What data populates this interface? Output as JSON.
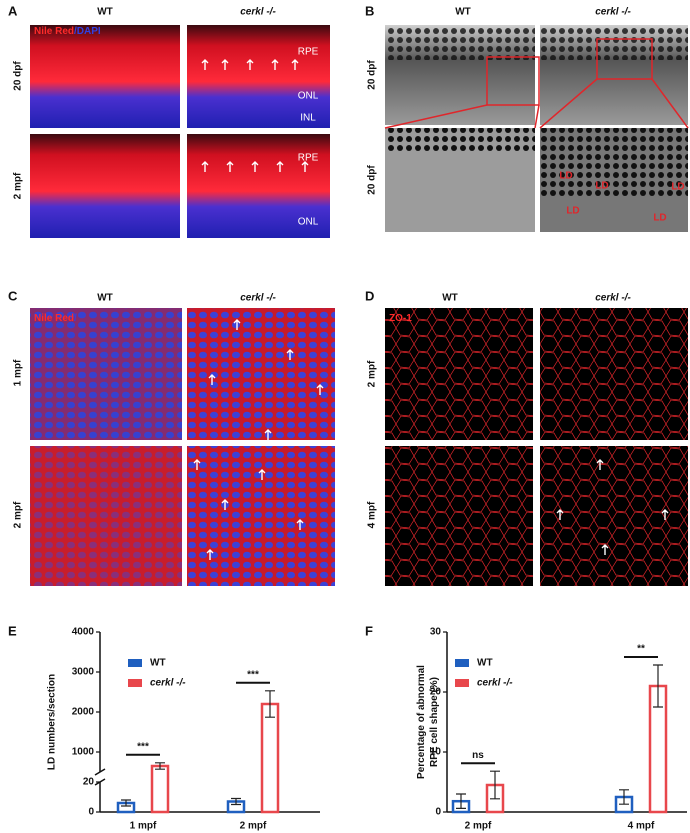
{
  "panels": {
    "A": {
      "label": "A",
      "columns": [
        "WT",
        "cerkl -/-"
      ],
      "rows": [
        "20 dpf",
        "2 mpf"
      ],
      "stain": [
        "Nile Red",
        "/DAPI"
      ],
      "layers_top": [
        "RPE",
        "ONL",
        "INL"
      ],
      "layers_bottom": [
        "RPE",
        "ONL"
      ]
    },
    "B": {
      "label": "B",
      "columns": [
        "WT",
        "cerkl -/-"
      ],
      "rows": [
        "20 dpf",
        "20 dpf"
      ],
      "ld": [
        "LD",
        "LD",
        "LD",
        "LD",
        "LD"
      ]
    },
    "C": {
      "label": "C",
      "columns": [
        "WT",
        "cerkl -/-"
      ],
      "rows": [
        "1 mpf",
        "2 mpf"
      ],
      "stain": [
        "Nile Red",
        "/"
      ]
    },
    "D": {
      "label": "D",
      "columns": [
        "WT",
        "cerkl -/-"
      ],
      "rows": [
        "2 mpf",
        "4 mpf"
      ],
      "stain": [
        "ZO-1"
      ]
    },
    "E": {
      "label": "E"
    },
    "F": {
      "label": "F"
    }
  },
  "chart_data": [
    {
      "type": "bar",
      "ylabel": [
        "LD numbers/section"
      ],
      "categories": [
        "1 mpf",
        "2 mpf"
      ],
      "series": [
        {
          "name": "WT",
          "color": "#1f5fbf",
          "values": [
            6,
            7
          ],
          "errors": [
            2,
            2
          ]
        },
        {
          "name": "cerkl -/-",
          "color": "#e8474c",
          "values": [
            650,
            2200
          ],
          "errors": [
            80,
            330
          ]
        }
      ],
      "axis_segments": [
        {
          "ylim": [
            0,
            20
          ],
          "yticks": [
            0,
            20
          ]
        },
        {
          "ylim": [
            500,
            4000
          ],
          "yticks": [
            1000,
            2000,
            3000,
            4000
          ]
        }
      ],
      "significance": [
        "***",
        "***"
      ],
      "legend": "top-left"
    },
    {
      "type": "bar",
      "ylabel": [
        "Percentage of abnormal",
        "RPE cell shape (%)"
      ],
      "categories": [
        "2 mpf",
        "4 mpf"
      ],
      "series": [
        {
          "name": "WT",
          "color": "#1f5fbf",
          "values": [
            1.8,
            2.5
          ],
          "errors": [
            1.2,
            1.2
          ]
        },
        {
          "name": "cerkl -/-",
          "color": "#e8474c",
          "values": [
            4.5,
            21
          ],
          "errors": [
            2.3,
            3.5
          ]
        }
      ],
      "ylim": [
        0,
        30
      ],
      "yticks": [
        0,
        10,
        20,
        30
      ],
      "significance": [
        "ns",
        "**"
      ],
      "legend": "top-left"
    }
  ]
}
